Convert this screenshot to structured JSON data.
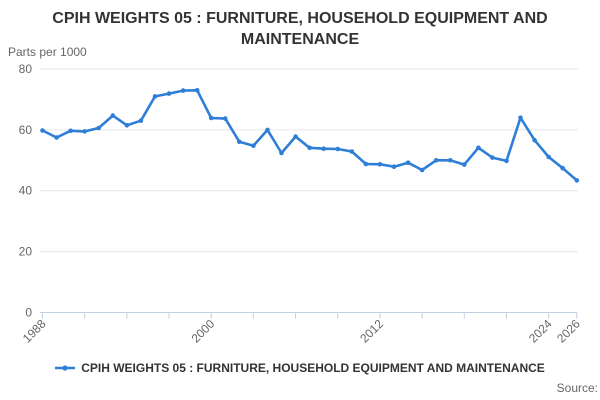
{
  "header": {
    "title": "CPIH WEIGHTS 05 : FURNITURE, HOUSEHOLD EQUIPMENT AND MAINTENANCE"
  },
  "legend": {
    "label": "CPIH WEIGHTS 05 : FURNITURE, HOUSEHOLD EQUIPMENT AND MAINTENANCE",
    "marker": "line-with-dot-icon"
  },
  "footer": {
    "source_label": "Source:"
  },
  "colors": {
    "line": "#2f7ed8",
    "grid": "#e6e6e6",
    "axis": "#c0d0e0",
    "tick_text": "#666666",
    "title_text": "#333333"
  },
  "chart_data": {
    "type": "line",
    "title": "CPIH WEIGHTS 05 : FURNITURE, HOUSEHOLD EQUIPMENT AND MAINTENANCE",
    "ylabel": "Parts per 1000",
    "xlabel": "",
    "series": [
      {
        "name": "CPIH WEIGHTS 05 : FURNITURE, HOUSEHOLD EQUIPMENT AND MAINTENANCE",
        "x": [
          1988,
          1989,
          1990,
          1991,
          1992,
          1993,
          1994,
          1995,
          1996,
          1997,
          1998,
          1999,
          2000,
          2001,
          2002,
          2003,
          2004,
          2005,
          2006,
          2007,
          2008,
          2009,
          2010,
          2011,
          2012,
          2013,
          2014,
          2015,
          2016,
          2017,
          2018,
          2019,
          2020,
          2021,
          2022,
          2023,
          2024,
          2025,
          2026
        ],
        "values": [
          59.8,
          57.5,
          59.7,
          59.5,
          60.6,
          64.7,
          61.5,
          63.0,
          71.0,
          71.9,
          72.9,
          73.0,
          63.9,
          63.7,
          56.1,
          54.8,
          60.0,
          52.4,
          57.8,
          54.1,
          53.8,
          53.7,
          52.9,
          48.8,
          48.7,
          47.9,
          49.2,
          46.8,
          50.0,
          50.0,
          48.6,
          54.1,
          50.9,
          49.8,
          64.0,
          56.6,
          51.1,
          47.4,
          43.4
        ]
      }
    ],
    "xlim": [
      1988,
      2026
    ],
    "ylim": [
      0,
      80
    ],
    "y_ticks": [
      0,
      20,
      40,
      60,
      80
    ],
    "x_ticks": [
      1988,
      1991,
      1994,
      1997,
      2000,
      2003,
      2006,
      2009,
      2012,
      2015,
      2018,
      2021,
      2024,
      2026
    ],
    "x_tick_labels": [
      "1988",
      "2000",
      "2012",
      "2024",
      "2026"
    ],
    "x_tick_label_years": [
      1988,
      2000,
      2012,
      2024,
      2026
    ],
    "grid": "horizontal-only",
    "markers": "circle",
    "legend_position": "bottom-center"
  }
}
